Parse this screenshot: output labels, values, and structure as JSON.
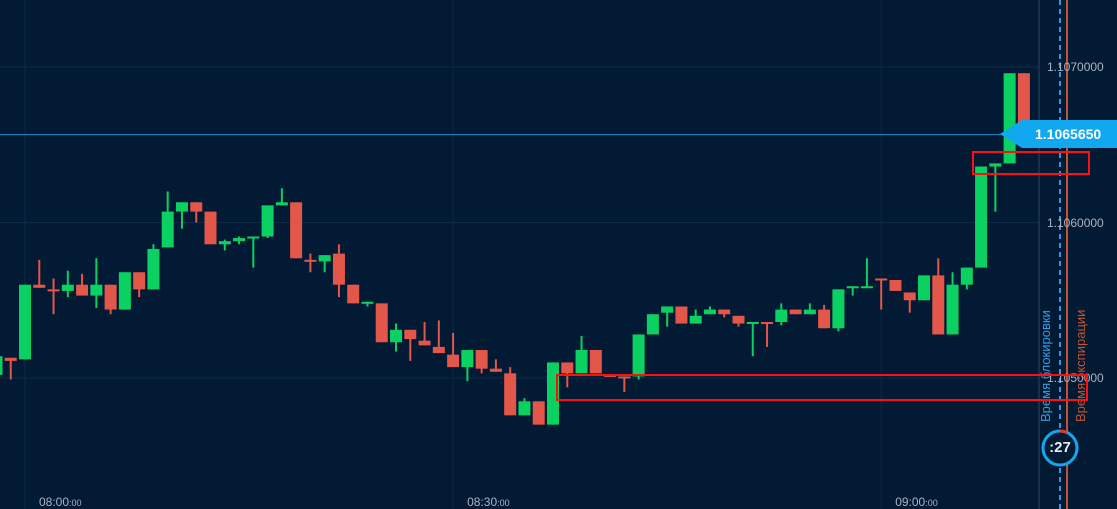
{
  "colors": {
    "up": "#0bd162",
    "down": "#e3564a",
    "background": "#021a34",
    "price_line": "#1f8ad0",
    "price_tag": "#12a8f0",
    "lock_line": "#2f9be0",
    "expiry_line": "#c05433",
    "highlight": "#ff1010"
  },
  "chart_data": {
    "type": "candlestick",
    "title": "",
    "interval_minutes": 1,
    "first_candle_time": "07:58",
    "ylim": [
      1.10435,
      1.10745
    ],
    "y_ticks": [
      "1.1070000",
      "1.1060000",
      "1.1050000"
    ],
    "y_tick_values": [
      1.107,
      1.106,
      1.105
    ],
    "x_ticks": [
      {
        "main": "08:00",
        "sec": ":00",
        "minute": 0
      },
      {
        "main": "08:30",
        "sec": ":00",
        "minute": 30
      },
      {
        "main": "09:00",
        "sec": ":00",
        "minute": 60
      }
    ],
    "current_price": "1.1065650",
    "current_price_value": 1.106565,
    "candles_ohlc": [
      [
        1.10502,
        1.10514,
        1.10499,
        1.10514
      ],
      [
        1.10513,
        1.10513,
        1.10499,
        1.10511
      ],
      [
        1.10512,
        1.1056,
        1.10512,
        1.1056
      ],
      [
        1.1056,
        1.10576,
        1.10558,
        1.10558
      ],
      [
        1.10557,
        1.10564,
        1.10541,
        1.10556
      ],
      [
        1.10556,
        1.10569,
        1.10552,
        1.1056
      ],
      [
        1.1056,
        1.10567,
        1.10553,
        1.10553
      ],
      [
        1.10553,
        1.10577,
        1.10545,
        1.1056
      ],
      [
        1.1056,
        1.1056,
        1.10541,
        1.10544
      ],
      [
        1.10544,
        1.10568,
        1.10544,
        1.10568
      ],
      [
        1.10568,
        1.10568,
        1.10552,
        1.10557
      ],
      [
        1.10557,
        1.10586,
        1.10557,
        1.10583
      ],
      [
        1.10584,
        1.1062,
        1.10584,
        1.10607
      ],
      [
        1.10607,
        1.10613,
        1.10596,
        1.10613
      ],
      [
        1.10613,
        1.10613,
        1.106,
        1.10607
      ],
      [
        1.10607,
        1.10607,
        1.10586,
        1.10586
      ],
      [
        1.10586,
        1.10589,
        1.10582,
        1.10588
      ],
      [
        1.10588,
        1.10591,
        1.10586,
        1.1059
      ],
      [
        1.1059,
        1.10591,
        1.10571,
        1.10591
      ],
      [
        1.10591,
        1.10611,
        1.1059,
        1.10611
      ],
      [
        1.10611,
        1.10622,
        1.10611,
        1.10613
      ],
      [
        1.10613,
        1.10613,
        1.10577,
        1.10577
      ],
      [
        1.10576,
        1.1058,
        1.10568,
        1.10575
      ],
      [
        1.10575,
        1.10579,
        1.10568,
        1.10579
      ],
      [
        1.1058,
        1.10586,
        1.10552,
        1.1056
      ],
      [
        1.1056,
        1.1056,
        1.10548,
        1.10548
      ],
      [
        1.10548,
        1.10549,
        1.10546,
        1.10549
      ],
      [
        1.10548,
        1.10548,
        1.10523,
        1.10523
      ],
      [
        1.10523,
        1.10535,
        1.10517,
        1.10531
      ],
      [
        1.10531,
        1.10531,
        1.10511,
        1.10525
      ],
      [
        1.10524,
        1.10536,
        1.10521,
        1.10521
      ],
      [
        1.1052,
        1.10537,
        1.10516,
        1.10516
      ],
      [
        1.10515,
        1.10529,
        1.10507,
        1.10507
      ],
      [
        1.10507,
        1.10518,
        1.10498,
        1.10518
      ],
      [
        1.10518,
        1.10518,
        1.10503,
        1.10506
      ],
      [
        1.10506,
        1.10512,
        1.10504,
        1.10504
      ],
      [
        1.10503,
        1.10507,
        1.10476,
        1.10476
      ],
      [
        1.10476,
        1.10487,
        1.10476,
        1.10485
      ],
      [
        1.10485,
        1.10485,
        1.1047,
        1.1047
      ],
      [
        1.1047,
        1.1051,
        1.1047,
        1.1051
      ],
      [
        1.1051,
        1.1051,
        1.10494,
        1.10503
      ],
      [
        1.10503,
        1.10527,
        1.10503,
        1.10518
      ],
      [
        1.10518,
        1.10518,
        1.10503,
        1.10503
      ],
      [
        1.10502,
        1.10502,
        1.10501,
        1.10501
      ],
      [
        1.10501,
        1.10501,
        1.10491,
        1.105
      ],
      [
        1.10501,
        1.10528,
        1.10499,
        1.10528
      ],
      [
        1.10528,
        1.10541,
        1.10528,
        1.10541
      ],
      [
        1.10542,
        1.10546,
        1.10533,
        1.10546
      ],
      [
        1.10546,
        1.10546,
        1.10535,
        1.10535
      ],
      [
        1.10535,
        1.10544,
        1.10535,
        1.1054
      ],
      [
        1.10541,
        1.10546,
        1.10541,
        1.10544
      ],
      [
        1.10544,
        1.10544,
        1.10539,
        1.10541
      ],
      [
        1.1054,
        1.1054,
        1.10533,
        1.10535
      ],
      [
        1.10535,
        1.10536,
        1.10514,
        1.10536
      ],
      [
        1.10536,
        1.10536,
        1.1052,
        1.10535
      ],
      [
        1.10536,
        1.10548,
        1.10534,
        1.10544
      ],
      [
        1.10544,
        1.10544,
        1.10541,
        1.10541
      ],
      [
        1.10541,
        1.10548,
        1.10541,
        1.10544
      ],
      [
        1.10544,
        1.10547,
        1.10532,
        1.10532
      ],
      [
        1.10532,
        1.10557,
        1.1053,
        1.10557
      ],
      [
        1.10558,
        1.10559,
        1.10553,
        1.10559
      ],
      [
        1.10558,
        1.10577,
        1.10558,
        1.10559
      ],
      [
        1.10564,
        1.10564,
        1.10544,
        1.10563
      ],
      [
        1.10563,
        1.10563,
        1.10556,
        1.10556
      ],
      [
        1.10555,
        1.10555,
        1.10542,
        1.1055
      ],
      [
        1.1055,
        1.10566,
        1.1055,
        1.10566
      ],
      [
        1.10566,
        1.10577,
        1.10528,
        1.10528
      ],
      [
        1.10528,
        1.10568,
        1.10528,
        1.1056
      ],
      [
        1.1056,
        1.10571,
        1.10557,
        1.10571
      ],
      [
        1.10571,
        1.10636,
        1.10571,
        1.10636
      ],
      [
        1.10636,
        1.10638,
        1.10607,
        1.10638
      ],
      [
        1.10638,
        1.10696,
        1.10638,
        1.10696
      ],
      [
        1.10696,
        1.10696,
        1.106565,
        1.106565
      ]
    ],
    "annotations": {
      "lock_label": "Время блокировки",
      "expiry_label": "Время экспирации",
      "timer": ":27"
    },
    "highlight_zones": [
      {
        "price_from": 1.10629,
        "price_to": 1.10644
      },
      {
        "price_from": 1.10485,
        "price_to": 1.10502
      }
    ]
  }
}
